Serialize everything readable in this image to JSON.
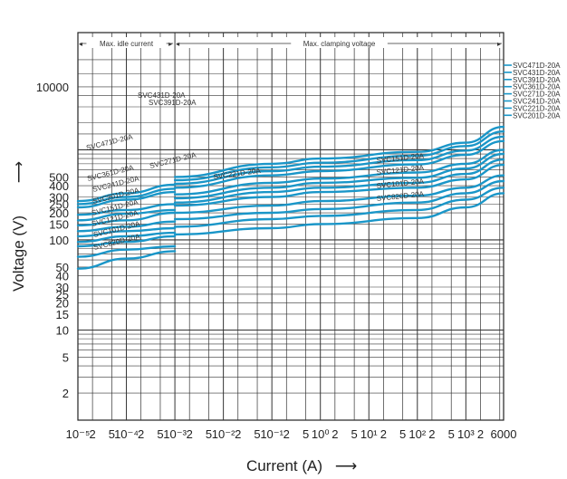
{
  "chart_data": {
    "type": "line",
    "xlabel": "Current (A)",
    "ylabel": "Voltage (V)",
    "x_scale": "log",
    "y_scale": "log",
    "xlim": [
      1e-05,
      6000
    ],
    "ylim": [
      1,
      20000
    ],
    "grid": true,
    "line_color": "#1a96c8",
    "x_tick_labels": [
      "10⁻⁵",
      "2",
      "5",
      "10⁻⁴",
      "2",
      "5",
      "10⁻³",
      "2",
      "5",
      "10⁻²",
      "2",
      "5",
      "10⁻¹",
      "2",
      "5",
      "10⁰",
      "2",
      "5",
      "10¹",
      "2",
      "5",
      "10²",
      "2",
      "5",
      "10³",
      "2",
      "6000"
    ],
    "y_tick_labels": [
      "10000",
      "500",
      "400",
      "300",
      "250",
      "200",
      "150",
      "100",
      "50",
      "40",
      "30",
      "25",
      "20",
      "15",
      "10",
      "5",
      "2"
    ],
    "regions": [
      {
        "label": "Max. idle current",
        "x_range": [
          1e-05,
          0.001
        ]
      },
      {
        "label": "Max. clamping voltage",
        "x_range": [
          0.001,
          6000
        ]
      }
    ],
    "idle_series": [
      {
        "name": "SVC471D-20A",
        "x": [
          1e-05,
          0.0001,
          0.001
        ],
        "y": [
          270,
          330,
          410
        ]
      },
      {
        "name": "SVC431D-20A",
        "x": [
          1e-05,
          0.0001,
          0.001
        ],
        "y": [
          250,
          300,
          370
        ]
      },
      {
        "name": "SVC391D-20A",
        "x": [
          1e-05,
          0.0001,
          0.001
        ],
        "y": [
          230,
          280,
          340
        ]
      },
      {
        "name": "SVC361D-20A",
        "x": [
          1e-05,
          0.0001,
          0.001
        ],
        "y": [
          190,
          215,
          250
        ]
      },
      {
        "name": "SVC271D-20A",
        "x": [
          1e-05,
          0.0001,
          0.001
        ],
        "y": [
          165,
          195,
          215
        ]
      },
      {
        "name": "SVC241D-20A",
        "x": [
          1e-05,
          0.0001,
          0.001
        ],
        "y": [
          145,
          165,
          200
        ]
      },
      {
        "name": "SVC201D-20A",
        "x": [
          1e-05,
          0.0001,
          0.001
        ],
        "y": [
          125,
          140,
          160
        ]
      },
      {
        "name": "SVC151D-20A",
        "x": [
          1e-05,
          0.0001,
          0.001
        ],
        "y": [
          110,
          125,
          135
        ]
      },
      {
        "name": "SVC121D-20A",
        "x": [
          1e-05,
          0.0001,
          0.001
        ],
        "y": [
          95,
          110,
          120
        ]
      },
      {
        "name": "SVC101D-20A",
        "x": [
          1e-05,
          0.0001,
          0.001
        ],
        "y": [
          85,
          95,
          110
        ]
      },
      {
        "name": "SVC820D-20A",
        "x": [
          1e-05,
          0.0001,
          0.001
        ],
        "y": [
          65,
          78,
          85
        ]
      },
      {
        "name": "",
        "x": [
          1e-05,
          0.0001,
          0.001
        ],
        "y": [
          48,
          62,
          75
        ]
      }
    ],
    "clamp_series": [
      {
        "name": "SVC471D-20A",
        "x": [
          0.001,
          0.1,
          1,
          100,
          1000,
          6000
        ],
        "y": [
          500,
          700,
          800,
          950,
          1200,
          1800
        ]
      },
      {
        "name": "SVC431D-20A",
        "x": [
          0.001,
          0.1,
          1,
          100,
          1000,
          6000
        ],
        "y": [
          460,
          640,
          720,
          860,
          1100,
          1600
        ]
      },
      {
        "name": "SVC391D-20A",
        "x": [
          0.001,
          0.1,
          1,
          100,
          1000,
          6000
        ],
        "y": [
          420,
          580,
          650,
          770,
          980,
          1400
        ]
      },
      {
        "name": "SVC361D-20A",
        "x": [
          0.001,
          0.1,
          1,
          100,
          1000,
          6000
        ],
        "y": [
          380,
          520,
          580,
          690,
          880,
          1250
        ]
      },
      {
        "name": "SVC271D-20A",
        "x": [
          0.001,
          0.1,
          1,
          100,
          1000,
          6000
        ],
        "y": [
          320,
          430,
          480,
          560,
          700,
          1000
        ]
      },
      {
        "name": "SVC241D-20A",
        "x": [
          0.001,
          0.1,
          1,
          100,
          1000,
          6000
        ],
        "y": [
          290,
          380,
          430,
          490,
          620,
          900
        ]
      },
      {
        "name": "SVC221D-20A",
        "x": [
          0.001,
          0.1,
          1,
          100,
          1000,
          6000
        ],
        "y": [
          260,
          340,
          380,
          430,
          540,
          780
        ]
      },
      {
        "name": "SVC201D-20A",
        "x": [
          0.001,
          0.1,
          1,
          100,
          1000,
          6000
        ],
        "y": [
          240,
          300,
          340,
          380,
          470,
          680
        ]
      },
      {
        "name": "SVC151D-20A",
        "x": [
          0.001,
          0.1,
          1,
          100,
          1000,
          6000
        ],
        "y": [
          200,
          240,
          270,
          310,
          380,
          520
        ]
      },
      {
        "name": "SVC121D-20A",
        "x": [
          0.001,
          0.1,
          1,
          100,
          1000,
          6000
        ],
        "y": [
          170,
          200,
          220,
          260,
          330,
          450
        ]
      },
      {
        "name": "SVC101D-20A",
        "x": [
          0.001,
          0.1,
          1,
          100,
          1000,
          6000
        ],
        "y": [
          140,
          170,
          185,
          215,
          280,
          380
        ]
      },
      {
        "name": "SVC820D-20A",
        "x": [
          0.001,
          0.1,
          1,
          100,
          1000,
          6000
        ],
        "y": [
          115,
          135,
          150,
          175,
          230,
          330
        ]
      }
    ],
    "right_legend": [
      "SVC471D-20A",
      "SVC431D-20A",
      "SVC391D-20A",
      "SVC361D-20A",
      "SVC271D-20A",
      "SVC241D-20A",
      "SVC221D-20A",
      "SVC201D-20A"
    ],
    "left_labels": [
      "SVC431D-20A",
      "SVC391D-20A",
      "SVC471D-20A",
      "SVC361D-20A",
      "SVC271D-20A",
      "SVC241D-20A",
      "SVC201D-20A",
      "SVC151D-20A",
      "SVC121D-20A",
      "SVC101D-20A",
      "SVC820D-20A"
    ],
    "mid_labels": [
      "SVC221D-20A"
    ],
    "inner_labels": [
      "SVC151D-20A",
      "SVC121D-20A",
      "SVC101D-20A",
      "SVC820D-20A"
    ]
  }
}
